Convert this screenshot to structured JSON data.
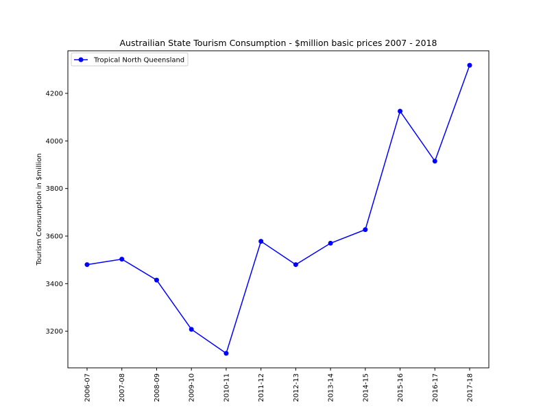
{
  "chart_data": {
    "type": "line",
    "title": "Austrailian State Tourism Consumption - $million basic prices 2007 - 2018",
    "xlabel": "",
    "ylabel": "Tourism Consumption in $million",
    "categories": [
      "2006-07",
      "2007-08",
      "2008-09",
      "2009-10",
      "2010-11",
      "2011-12",
      "2012-13",
      "2013-14",
      "2014-15",
      "2015-16",
      "2016-17",
      "2017-18"
    ],
    "series": [
      {
        "name": "Tropical North Queensland",
        "color": "#0000ff",
        "marker": "circle",
        "values": [
          3480,
          3503,
          3415,
          3208,
          3107,
          3578,
          3480,
          3570,
          3627,
          4125,
          3915,
          4318
        ]
      }
    ],
    "yticks": [
      3200,
      3400,
      3600,
      3800,
      4000,
      4200
    ],
    "ylim": [
      3046,
      4379
    ],
    "grid": false,
    "legend_position": "top-left"
  }
}
